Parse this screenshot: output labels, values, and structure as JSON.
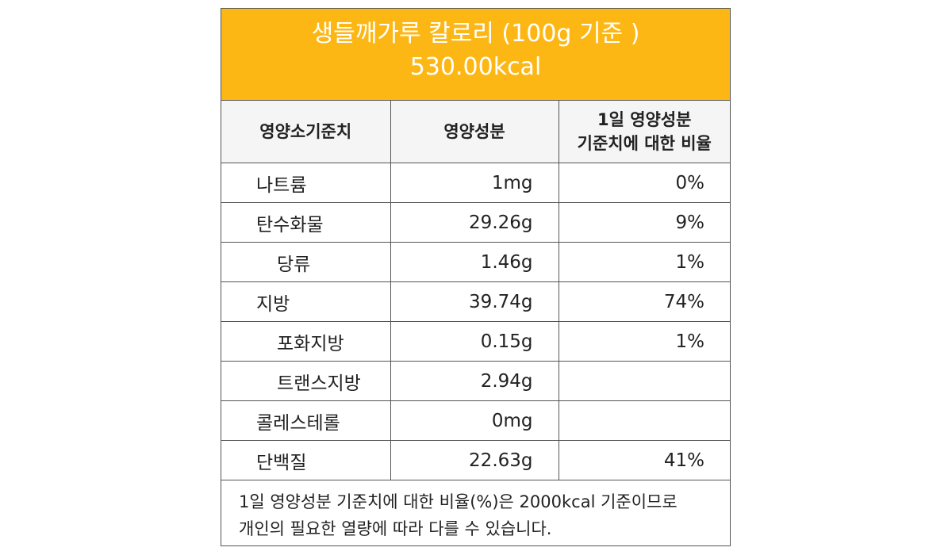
{
  "header": {
    "title": "생들깨가루 칼로리 (100g 기준 )",
    "kcal": "530.00kcal"
  },
  "table": {
    "col1_header": "영양소기준치",
    "col2_header": "영양성분",
    "col3_header_line1": "1일 영양성분",
    "col3_header_line2": "기준치에 대한 비율",
    "rows": [
      {
        "name": "나트륨",
        "amount": "1mg",
        "ratio": "0%"
      },
      {
        "name": "탄수화물",
        "amount": "29.26g",
        "ratio": "9%"
      },
      {
        "name": "당류",
        "amount": "1.46g",
        "ratio": "1%"
      },
      {
        "name": "지방",
        "amount": "39.74g",
        "ratio": "74%"
      },
      {
        "name": "포화지방",
        "amount": "0.15g",
        "ratio": "1%"
      },
      {
        "name": "트랜스지방",
        "amount": "2.94g",
        "ratio": ""
      },
      {
        "name": "콜레스테롤",
        "amount": "0mg",
        "ratio": ""
      },
      {
        "name": "단백질",
        "amount": "22.63g",
        "ratio": "41%"
      }
    ]
  },
  "note": {
    "line1": "1일 영양성분 기준치에 대한 비율(%)은 2000kcal 기준이므로",
    "line2": "개인의 필요한 열량에 따라 다를 수 있습니다."
  },
  "colors": {
    "header_bg": "#fdb714",
    "header_text": "#ffffff"
  }
}
